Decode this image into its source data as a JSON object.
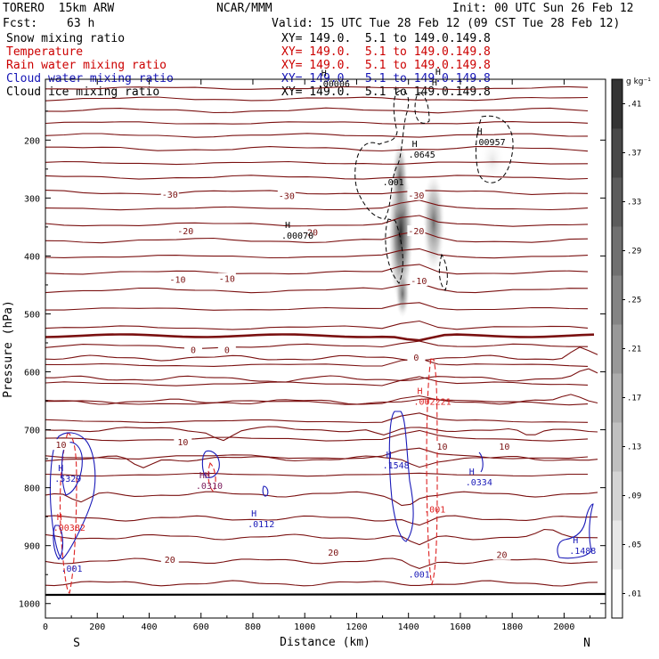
{
  "header": {
    "model": "TORERO  15km ARW",
    "org": "NCAR/MMM",
    "init": "Init: 00 UTC Sun 26 Feb 12",
    "fcst_label": "Fcst:",
    "fcst_value": "63 h",
    "valid": "Valid: 15 UTC Tue 28 Feb 12 (09 CST Tue 28 Feb 12)"
  },
  "fields": [
    {
      "name": "Snow mixing ratio",
      "xy": "XY= 149.0.  5.1 to 149.0.149.8",
      "color": "#000000"
    },
    {
      "name": "Temperature",
      "xy": "XY= 149.0.  5.1 to 149.0.149.8",
      "color": "#cc0000"
    },
    {
      "name": "Rain water mixing ratio",
      "xy": "XY= 149.0.  5.1 to 149.0.149.8",
      "color": "#cc0000"
    },
    {
      "name": "Cloud water mixing ratio",
      "xy": "XY= 149.0.  5.1 to 149.0.149.8",
      "color": "#1515b5"
    },
    {
      "name": "Cloud ice mixing ratio",
      "xy": "XY= 149.0.  5.1 to 149.0.149.8",
      "color": "#000000"
    }
  ],
  "colors": {
    "temperature": "#7a1010",
    "rain": "#dd2222",
    "cloud_water": "#1a1ab8",
    "cloud_ice": "#000000"
  },
  "chart_data": {
    "type": "heatmap",
    "xlabel": "Distance (km)",
    "ylabel": "Pressure (hPa)",
    "xlim": [
      0,
      2160
    ],
    "ylim": [
      1025,
      95
    ],
    "x_ticks": [
      0,
      200,
      400,
      600,
      800,
      1000,
      1200,
      1400,
      1600,
      1800,
      2000
    ],
    "y_ticks": [
      200,
      300,
      400,
      500,
      600,
      700,
      800,
      900,
      1000
    ],
    "endpoints": {
      "left": "S",
      "right": "N"
    },
    "colorbar": {
      "unit": "g kg⁻¹",
      "ticks": [
        ".01",
        ".05",
        ".09",
        ".13",
        ".17",
        ".21",
        ".25",
        ".29",
        ".33",
        ".37",
        ".41"
      ],
      "min": 0.01,
      "max": 0.45
    },
    "snow_maxima": [
      {
        "distance": 1370,
        "pressure": 360,
        "value": 0.45
      },
      {
        "distance": 1490,
        "pressure": 340,
        "value": 0.3
      }
    ],
    "temperature_labels": [
      {
        "text": "-30",
        "distance": 480,
        "pressure": 295
      },
      {
        "text": "-30",
        "distance": 930,
        "pressure": 297
      },
      {
        "text": "-30",
        "distance": 1430,
        "pressure": 296
      },
      {
        "text": "-20",
        "distance": 540,
        "pressure": 358
      },
      {
        "text": "-20",
        "distance": 1020,
        "pressure": 360
      },
      {
        "text": "-20",
        "distance": 1430,
        "pressure": 358
      },
      {
        "text": "-10",
        "distance": 510,
        "pressure": 442
      },
      {
        "text": "-10",
        "distance": 700,
        "pressure": 440
      },
      {
        "text": "-10",
        "distance": 1440,
        "pressure": 444
      },
      {
        "text": "0",
        "distance": 570,
        "pressure": 563
      },
      {
        "text": "0",
        "distance": 700,
        "pressure": 563
      },
      {
        "text": "0",
        "distance": 1430,
        "pressure": 576
      },
      {
        "text": "10",
        "distance": 60,
        "pressure": 727
      },
      {
        "text": "10",
        "distance": 530,
        "pressure": 722
      },
      {
        "text": "10",
        "distance": 1530,
        "pressure": 730
      },
      {
        "text": "10",
        "distance": 1770,
        "pressure": 730
      },
      {
        "text": "20",
        "distance": 480,
        "pressure": 925
      },
      {
        "text": "20",
        "distance": 1110,
        "pressure": 913
      },
      {
        "text": "20",
        "distance": 1760,
        "pressure": 917
      }
    ],
    "maxima_labels": [
      {
        "field": "cloud_ice",
        "h": "H",
        "value": ".00070",
        "distance": 910,
        "pressure": 370
      },
      {
        "field": "cloud_ice",
        "h": "H",
        "value": ".0645",
        "distance": 1400,
        "pressure": 230
      },
      {
        "field": "cloud_ice",
        "h": "H",
        "value": ".00957",
        "distance": 1650,
        "pressure": 209
      },
      {
        "field": "cloud_ice",
        "h": "H",
        "value": ".00006",
        "distance": 1050,
        "pressure": 108
      },
      {
        "field": "cloud_ice",
        "h": "H",
        "value": "H",
        "distance": 1490,
        "pressure": 106
      },
      {
        "field": "cloud_ice",
        "h": "",
        "value": ".001",
        "distance": 1300,
        "pressure": 278
      },
      {
        "field": "rain",
        "h": "H",
        "value": ".002221",
        "distance": 1420,
        "pressure": 657
      },
      {
        "field": "rain",
        "h": "H",
        "value": ".00382",
        "distance": 30,
        "pressure": 874
      },
      {
        "field": "rain",
        "h": "",
        "value": ".001",
        "distance": 1460,
        "pressure": 843
      },
      {
        "field": "cloud_water",
        "h": "H",
        "value": ".5329",
        "distance": 35,
        "pressure": 790
      },
      {
        "field": "cloud_water",
        "h": "H",
        "value": ".1548",
        "distance": 1300,
        "pressure": 767
      },
      {
        "field": "cloud_water",
        "h": "H",
        "value": ".0334",
        "distance": 1620,
        "pressure": 796
      },
      {
        "field": "cloud_water",
        "h": "H",
        "value": ".0112",
        "distance": 780,
        "pressure": 868
      },
      {
        "field": "cloud_water",
        "h": "H",
        "value": ".1488",
        "distance": 2020,
        "pressure": 914
      },
      {
        "field": "cloud_water",
        "h": "",
        "value": ".001",
        "distance": 60,
        "pressure": 945
      },
      {
        "field": "cloud_water",
        "h": "",
        "value": ".001",
        "distance": 1400,
        "pressure": 955
      },
      {
        "field": "mixed",
        "h": "HH",
        "value": ".0310",
        "distance": 580,
        "pressure": 802
      }
    ]
  }
}
